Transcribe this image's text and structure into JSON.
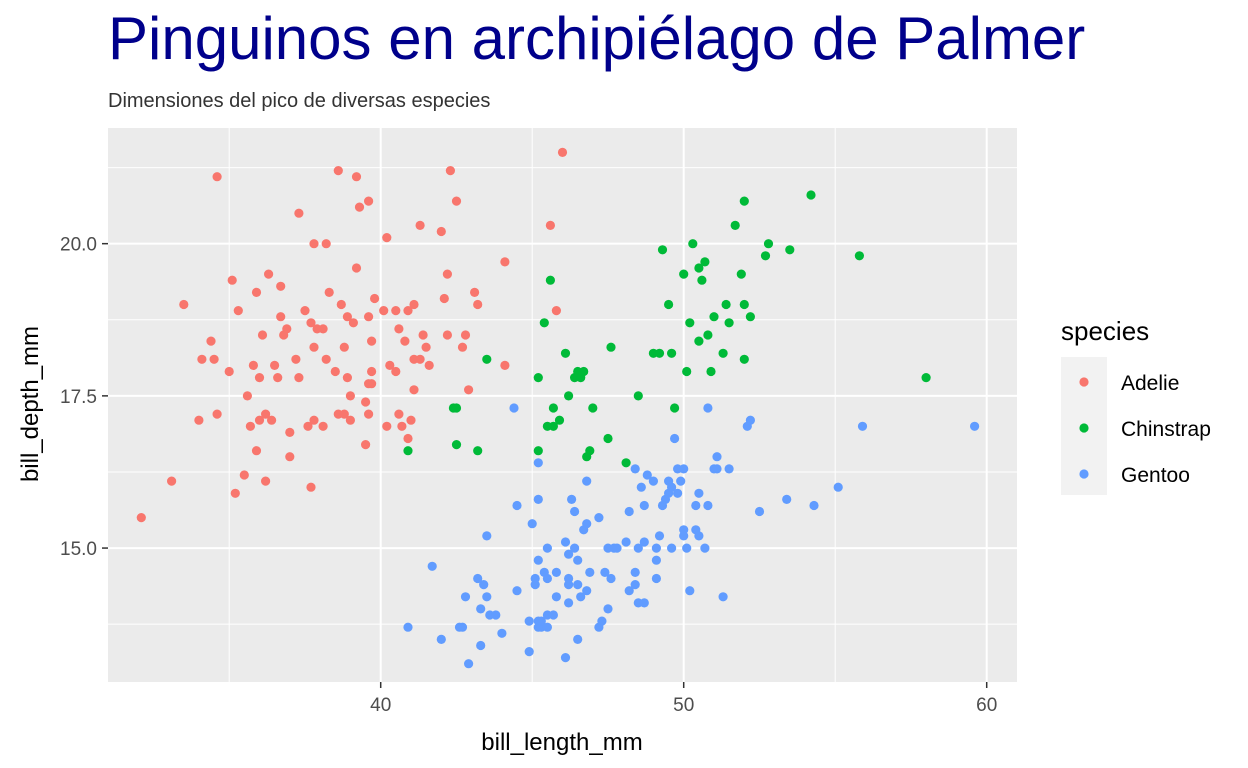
{
  "chart_data": {
    "type": "scatter",
    "title": "Pinguinos en archipiélago de Palmer",
    "subtitle": "Dimensiones del pico de diversas especies",
    "xlabel": "bill_length_mm",
    "ylabel": "bill_depth_mm",
    "xlim": [
      31,
      61
    ],
    "ylim": [
      12.8,
      21.9
    ],
    "xticks": [
      40,
      50,
      60
    ],
    "xtick_labels": [
      "40",
      "50",
      "60"
    ],
    "yticks": [
      15,
      17.5,
      20
    ],
    "ytick_labels": [
      "15.0",
      "17.5",
      "20.0"
    ],
    "grid": true,
    "legend": {
      "title": "species",
      "position": "right"
    },
    "colors": {
      "Adelie": "#F8766D",
      "Chinstrap": "#00BA38",
      "Gentoo": "#619CFF",
      "panel": "#EBEBEB",
      "title": "#00008B"
    },
    "series": [
      {
        "name": "Adelie",
        "color": "#F8766D",
        "points": [
          [
            32.1,
            15.5
          ],
          [
            33.1,
            16.1
          ],
          [
            33.5,
            19.0
          ],
          [
            34.0,
            17.1
          ],
          [
            34.1,
            18.1
          ],
          [
            34.4,
            18.4
          ],
          [
            34.5,
            18.1
          ],
          [
            34.6,
            17.2
          ],
          [
            34.6,
            21.1
          ],
          [
            35.0,
            17.9
          ],
          [
            35.1,
            19.4
          ],
          [
            35.2,
            15.9
          ],
          [
            35.3,
            18.9
          ],
          [
            35.5,
            16.2
          ],
          [
            35.6,
            17.5
          ],
          [
            35.7,
            17.0
          ],
          [
            35.8,
            18.0
          ],
          [
            35.9,
            16.6
          ],
          [
            35.9,
            19.2
          ],
          [
            36.0,
            17.1
          ],
          [
            36.0,
            17.8
          ],
          [
            36.1,
            18.5
          ],
          [
            36.2,
            16.1
          ],
          [
            36.2,
            17.2
          ],
          [
            36.3,
            19.5
          ],
          [
            36.4,
            17.1
          ],
          [
            36.5,
            18.0
          ],
          [
            36.6,
            17.8
          ],
          [
            36.7,
            18.8
          ],
          [
            36.7,
            19.3
          ],
          [
            36.8,
            18.5
          ],
          [
            36.9,
            18.6
          ],
          [
            37.0,
            16.5
          ],
          [
            37.0,
            16.9
          ],
          [
            37.2,
            18.1
          ],
          [
            37.3,
            17.8
          ],
          [
            37.3,
            20.5
          ],
          [
            37.5,
            18.9
          ],
          [
            37.6,
            17.0
          ],
          [
            37.7,
            16.0
          ],
          [
            37.7,
            18.7
          ],
          [
            37.8,
            17.1
          ],
          [
            37.8,
            18.3
          ],
          [
            37.8,
            20.0
          ],
          [
            37.9,
            18.6
          ],
          [
            38.1,
            17.0
          ],
          [
            38.1,
            18.6
          ],
          [
            38.2,
            18.1
          ],
          [
            38.2,
            20.0
          ],
          [
            38.3,
            19.2
          ],
          [
            38.5,
            17.9
          ],
          [
            38.6,
            17.2
          ],
          [
            38.6,
            21.2
          ],
          [
            38.7,
            19.0
          ],
          [
            38.8,
            17.2
          ],
          [
            38.8,
            18.3
          ],
          [
            38.9,
            17.8
          ],
          [
            38.9,
            18.8
          ],
          [
            39.0,
            17.1
          ],
          [
            39.0,
            17.5
          ],
          [
            39.1,
            18.7
          ],
          [
            39.2,
            19.6
          ],
          [
            39.2,
            21.1
          ],
          [
            39.3,
            20.6
          ],
          [
            39.5,
            16.7
          ],
          [
            39.5,
            17.4
          ],
          [
            39.6,
            17.2
          ],
          [
            39.6,
            17.7
          ],
          [
            39.6,
            18.8
          ],
          [
            39.6,
            20.7
          ],
          [
            39.7,
            17.7
          ],
          [
            39.7,
            17.9
          ],
          [
            39.7,
            18.4
          ],
          [
            39.8,
            19.1
          ],
          [
            40.1,
            18.9
          ],
          [
            40.2,
            17.0
          ],
          [
            40.2,
            20.1
          ],
          [
            40.3,
            18.0
          ],
          [
            40.5,
            17.9
          ],
          [
            40.5,
            18.9
          ],
          [
            40.6,
            17.2
          ],
          [
            40.6,
            18.6
          ],
          [
            40.7,
            17.0
          ],
          [
            40.8,
            18.4
          ],
          [
            40.9,
            16.8
          ],
          [
            40.9,
            18.9
          ],
          [
            41.0,
            17.1
          ],
          [
            41.1,
            17.6
          ],
          [
            41.1,
            18.1
          ],
          [
            41.1,
            19.0
          ],
          [
            41.3,
            18.1
          ],
          [
            41.3,
            20.3
          ],
          [
            41.4,
            18.5
          ],
          [
            41.5,
            18.3
          ],
          [
            41.6,
            18.0
          ],
          [
            42.0,
            20.2
          ],
          [
            42.1,
            19.1
          ],
          [
            42.2,
            18.5
          ],
          [
            42.2,
            19.5
          ],
          [
            42.3,
            21.2
          ],
          [
            42.5,
            20.7
          ],
          [
            42.7,
            18.3
          ],
          [
            42.8,
            18.5
          ],
          [
            42.9,
            17.6
          ],
          [
            43.1,
            19.2
          ],
          [
            43.2,
            19.0
          ],
          [
            44.1,
            18.0
          ],
          [
            44.1,
            19.7
          ],
          [
            45.6,
            20.3
          ],
          [
            45.8,
            18.9
          ],
          [
            46.0,
            21.5
          ]
        ]
      },
      {
        "name": "Chinstrap",
        "color": "#00BA38",
        "points": [
          [
            40.9,
            16.6
          ],
          [
            42.4,
            17.3
          ],
          [
            42.5,
            16.7
          ],
          [
            42.5,
            17.3
          ],
          [
            43.2,
            16.6
          ],
          [
            43.5,
            18.1
          ],
          [
            45.2,
            16.6
          ],
          [
            45.2,
            17.8
          ],
          [
            45.4,
            18.7
          ],
          [
            45.5,
            17.0
          ],
          [
            45.6,
            19.4
          ],
          [
            45.7,
            17.0
          ],
          [
            45.7,
            17.3
          ],
          [
            45.9,
            17.1
          ],
          [
            46.1,
            18.2
          ],
          [
            46.2,
            17.5
          ],
          [
            46.4,
            17.8
          ],
          [
            46.5,
            17.9
          ],
          [
            46.6,
            17.8
          ],
          [
            46.7,
            17.9
          ],
          [
            46.8,
            16.5
          ],
          [
            46.9,
            16.6
          ],
          [
            47.0,
            17.3
          ],
          [
            47.5,
            16.8
          ],
          [
            47.6,
            18.3
          ],
          [
            48.1,
            16.4
          ],
          [
            48.5,
            17.5
          ],
          [
            49.0,
            18.2
          ],
          [
            49.2,
            18.2
          ],
          [
            49.3,
            19.9
          ],
          [
            49.5,
            19.0
          ],
          [
            49.6,
            18.2
          ],
          [
            49.7,
            17.3
          ],
          [
            50.0,
            19.5
          ],
          [
            50.1,
            17.9
          ],
          [
            50.2,
            18.7
          ],
          [
            50.3,
            20.0
          ],
          [
            50.5,
            18.4
          ],
          [
            50.5,
            19.6
          ],
          [
            50.6,
            19.4
          ],
          [
            50.7,
            19.7
          ],
          [
            50.8,
            18.5
          ],
          [
            50.9,
            17.9
          ],
          [
            51.0,
            18.8
          ],
          [
            51.3,
            18.2
          ],
          [
            51.4,
            19.0
          ],
          [
            51.5,
            18.7
          ],
          [
            51.7,
            20.3
          ],
          [
            51.9,
            19.5
          ],
          [
            52.0,
            18.1
          ],
          [
            52.0,
            19.0
          ],
          [
            52.0,
            20.7
          ],
          [
            52.2,
            18.8
          ],
          [
            52.7,
            19.8
          ],
          [
            52.8,
            20.0
          ],
          [
            53.5,
            19.9
          ],
          [
            54.2,
            20.8
          ],
          [
            55.8,
            19.8
          ],
          [
            58.0,
            17.8
          ]
        ]
      },
      {
        "name": "Gentoo",
        "color": "#619CFF",
        "points": [
          [
            40.9,
            13.7
          ],
          [
            41.7,
            14.7
          ],
          [
            42.0,
            13.5
          ],
          [
            42.6,
            13.7
          ],
          [
            42.7,
            13.7
          ],
          [
            42.8,
            14.2
          ],
          [
            42.9,
            13.1
          ],
          [
            43.2,
            14.5
          ],
          [
            43.3,
            13.4
          ],
          [
            43.3,
            14.0
          ],
          [
            43.4,
            14.4
          ],
          [
            43.5,
            14.2
          ],
          [
            43.5,
            15.2
          ],
          [
            43.6,
            13.9
          ],
          [
            43.8,
            13.9
          ],
          [
            44.0,
            13.6
          ],
          [
            44.4,
            17.3
          ],
          [
            44.5,
            14.3
          ],
          [
            44.5,
            15.7
          ],
          [
            44.9,
            13.3
          ],
          [
            44.9,
            13.8
          ],
          [
            45.0,
            15.4
          ],
          [
            45.1,
            14.4
          ],
          [
            45.1,
            14.5
          ],
          [
            45.2,
            13.7
          ],
          [
            45.2,
            13.8
          ],
          [
            45.2,
            14.8
          ],
          [
            45.2,
            15.8
          ],
          [
            45.2,
            16.4
          ],
          [
            45.3,
            13.7
          ],
          [
            45.3,
            13.8
          ],
          [
            45.4,
            14.6
          ],
          [
            45.5,
            13.7
          ],
          [
            45.5,
            13.9
          ],
          [
            45.5,
            14.5
          ],
          [
            45.5,
            15.0
          ],
          [
            45.7,
            13.9
          ],
          [
            45.8,
            14.2
          ],
          [
            45.8,
            14.6
          ],
          [
            46.1,
            13.2
          ],
          [
            46.1,
            15.1
          ],
          [
            46.2,
            14.1
          ],
          [
            46.2,
            14.4
          ],
          [
            46.2,
            14.5
          ],
          [
            46.2,
            14.9
          ],
          [
            46.3,
            15.8
          ],
          [
            46.4,
            15.0
          ],
          [
            46.4,
            15.6
          ],
          [
            46.5,
            13.5
          ],
          [
            46.5,
            14.4
          ],
          [
            46.5,
            14.8
          ],
          [
            46.6,
            14.2
          ],
          [
            46.7,
            15.3
          ],
          [
            46.8,
            14.3
          ],
          [
            46.8,
            15.4
          ],
          [
            46.8,
            16.1
          ],
          [
            46.9,
            14.6
          ],
          [
            47.2,
            13.7
          ],
          [
            47.2,
            15.5
          ],
          [
            47.3,
            13.8
          ],
          [
            47.4,
            14.6
          ],
          [
            47.5,
            14.0
          ],
          [
            47.5,
            15.0
          ],
          [
            47.6,
            14.5
          ],
          [
            47.7,
            15.0
          ],
          [
            47.8,
            15.0
          ],
          [
            48.1,
            15.1
          ],
          [
            48.2,
            14.3
          ],
          [
            48.2,
            15.6
          ],
          [
            48.4,
            14.4
          ],
          [
            48.4,
            14.6
          ],
          [
            48.4,
            16.3
          ],
          [
            48.5,
            14.1
          ],
          [
            48.5,
            15.0
          ],
          [
            48.6,
            16.0
          ],
          [
            48.7,
            14.1
          ],
          [
            48.7,
            15.1
          ],
          [
            48.7,
            15.7
          ],
          [
            48.8,
            16.2
          ],
          [
            49.0,
            16.1
          ],
          [
            49.1,
            14.5
          ],
          [
            49.1,
            14.8
          ],
          [
            49.1,
            15.0
          ],
          [
            49.2,
            15.2
          ],
          [
            49.3,
            15.7
          ],
          [
            49.4,
            15.8
          ],
          [
            49.5,
            15.9
          ],
          [
            49.5,
            16.1
          ],
          [
            49.6,
            15.0
          ],
          [
            49.6,
            16.0
          ],
          [
            49.7,
            16.8
          ],
          [
            49.8,
            15.9
          ],
          [
            49.8,
            16.3
          ],
          [
            49.9,
            16.1
          ],
          [
            50.0,
            15.2
          ],
          [
            50.0,
            15.3
          ],
          [
            50.0,
            16.3
          ],
          [
            50.1,
            15.0
          ],
          [
            50.2,
            14.3
          ],
          [
            50.4,
            15.3
          ],
          [
            50.4,
            15.7
          ],
          [
            50.5,
            15.2
          ],
          [
            50.5,
            15.9
          ],
          [
            50.7,
            15.0
          ],
          [
            50.8,
            15.7
          ],
          [
            50.8,
            17.3
          ],
          [
            51.0,
            16.3
          ],
          [
            51.1,
            16.3
          ],
          [
            51.1,
            16.5
          ],
          [
            51.3,
            14.2
          ],
          [
            51.5,
            16.3
          ],
          [
            52.1,
            17.0
          ],
          [
            52.2,
            17.1
          ],
          [
            52.5,
            15.6
          ],
          [
            53.4,
            15.8
          ],
          [
            54.3,
            15.7
          ],
          [
            55.1,
            16.0
          ],
          [
            55.9,
            17.0
          ],
          [
            59.6,
            17.0
          ]
        ]
      }
    ]
  }
}
